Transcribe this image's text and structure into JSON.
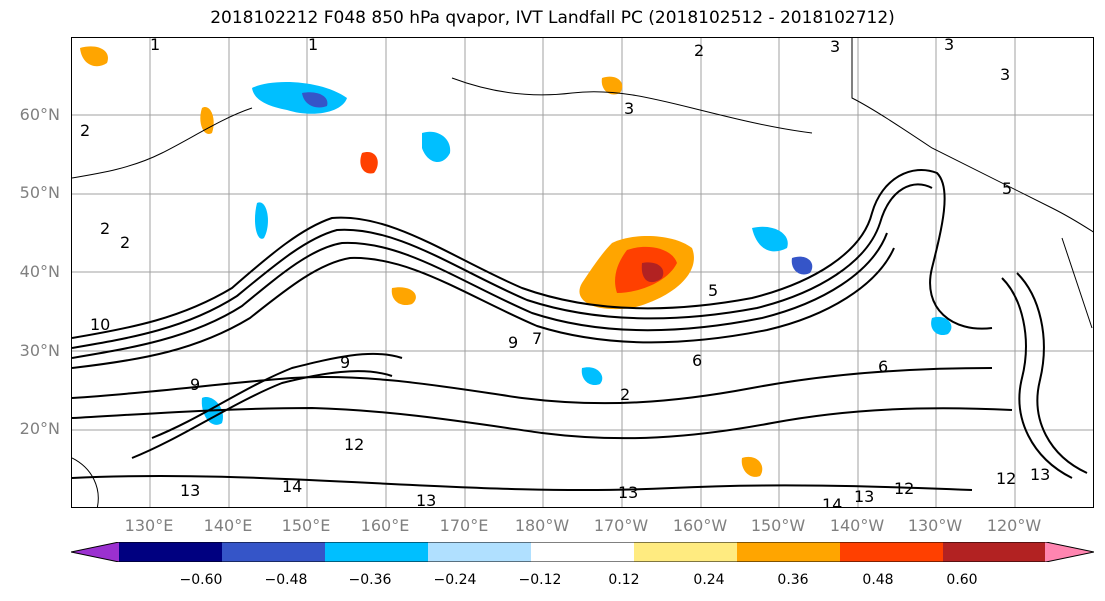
{
  "title": "2018102212 F048 850 hPa qvapor, IVT Landfall PC (2018102512 - 2018102712)",
  "map": {
    "lat_labels": [
      "60°N",
      "50°N",
      "40°N",
      "30°N",
      "20°N"
    ],
    "lon_labels": [
      "130°E",
      "140°E",
      "150°E",
      "160°E",
      "170°E",
      "180°W",
      "170°W",
      "160°W",
      "150°W",
      "140°W",
      "130°W",
      "120°W"
    ],
    "contour_labels": [
      "1",
      "1",
      "2",
      "3",
      "3",
      "3",
      "3",
      "2",
      "2",
      "2",
      "10",
      "9",
      "9",
      "9",
      "12",
      "14",
      "13",
      "13",
      "13",
      "14",
      "13",
      "12",
      "12",
      "13",
      "5",
      "5",
      "6",
      "6",
      "2",
      "7"
    ]
  },
  "colorbar": {
    "colors": [
      "#9b30d0",
      "#000080",
      "#3555c8",
      "#00bfff",
      "#b0e0ff",
      "#ffffff",
      "#ffeb80",
      "#ffa500",
      "#ff4000",
      "#b22222",
      "#ff85b0"
    ],
    "ticks": [
      "−0.60",
      "−0.48",
      "−0.36",
      "−0.24",
      "−0.12",
      "0.12",
      "0.24",
      "0.36",
      "0.48",
      "0.60"
    ]
  },
  "legend_colors": {
    "contour": "#000000",
    "grid": "#a0a0a0"
  }
}
